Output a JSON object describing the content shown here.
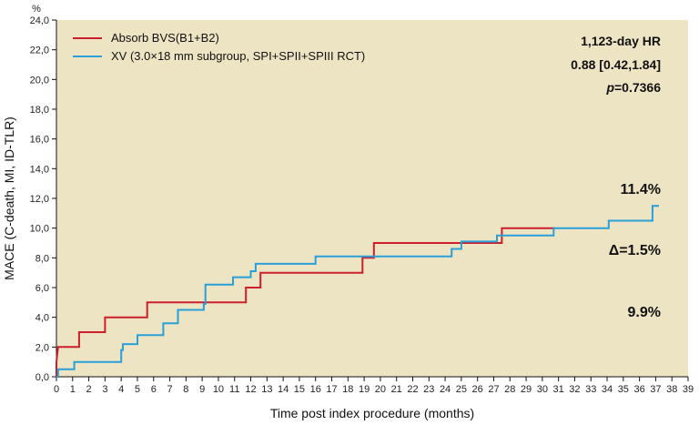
{
  "chart_data": {
    "type": "line",
    "step": true,
    "xlabel": "Time post index procedure (months)",
    "ylabel": "MACE (C-death, MI, ID-TLR)",
    "yunit": "%",
    "xlim": [
      0,
      39
    ],
    "ylim": [
      0,
      24
    ],
    "xticks": [
      0,
      1,
      2,
      3,
      4,
      5,
      6,
      7,
      8,
      9,
      10,
      11,
      12,
      13,
      14,
      15,
      16,
      17,
      18,
      19,
      20,
      21,
      22,
      23,
      24,
      25,
      26,
      27,
      28,
      29,
      30,
      31,
      32,
      33,
      34,
      35,
      36,
      37,
      38,
      39
    ],
    "yticks": [
      "0,0",
      "2,0",
      "4,0",
      "6,0",
      "8,0",
      "10,0",
      "12,0",
      "14,0",
      "16,0",
      "18,0",
      "20,0",
      "22,0",
      "24,0"
    ],
    "grid": false,
    "legend_position": "top-left",
    "series": [
      {
        "name": "Absorb BVS(B1+B2)",
        "color": "#cc1f2b",
        "points": [
          [
            0,
            0
          ],
          [
            0,
            1.0
          ],
          [
            0.1,
            2.0
          ],
          [
            1.4,
            2.0
          ],
          [
            1.4,
            3.0
          ],
          [
            3.0,
            3.0
          ],
          [
            3.0,
            4.0
          ],
          [
            5.6,
            4.0
          ],
          [
            5.6,
            5.0
          ],
          [
            11.7,
            5.0
          ],
          [
            11.7,
            6.0
          ],
          [
            12.6,
            6.0
          ],
          [
            12.6,
            7.0
          ],
          [
            18.9,
            7.0
          ],
          [
            18.9,
            8.0
          ],
          [
            19.6,
            8.0
          ],
          [
            19.6,
            9.0
          ],
          [
            27.5,
            9.0
          ],
          [
            27.5,
            10.0
          ],
          [
            30.8,
            10.0
          ]
        ]
      },
      {
        "name": "XV (3.0×18 mm subgroup, SPI+SPII+SPIII RCT)",
        "color": "#2a9fd8",
        "points": [
          [
            0,
            0
          ],
          [
            0.1,
            0
          ],
          [
            0.1,
            0.5
          ],
          [
            1.1,
            0.5
          ],
          [
            1.1,
            1.0
          ],
          [
            4.0,
            1.0
          ],
          [
            4.0,
            1.8
          ],
          [
            4.1,
            1.8
          ],
          [
            4.1,
            2.2
          ],
          [
            5.0,
            2.2
          ],
          [
            5.0,
            2.8
          ],
          [
            6.6,
            2.8
          ],
          [
            6.6,
            3.6
          ],
          [
            7.5,
            3.6
          ],
          [
            7.5,
            4.5
          ],
          [
            9.1,
            4.5
          ],
          [
            9.1,
            4.9
          ],
          [
            9.2,
            4.9
          ],
          [
            9.2,
            6.2
          ],
          [
            10.9,
            6.2
          ],
          [
            10.9,
            6.7
          ],
          [
            12.0,
            6.7
          ],
          [
            12.0,
            7.1
          ],
          [
            12.3,
            7.1
          ],
          [
            12.3,
            7.6
          ],
          [
            16.0,
            7.6
          ],
          [
            16.0,
            8.1
          ],
          [
            24.4,
            8.1
          ],
          [
            24.4,
            8.6
          ],
          [
            25.0,
            8.6
          ],
          [
            25.0,
            9.1
          ],
          [
            27.2,
            9.1
          ],
          [
            27.2,
            9.5
          ],
          [
            30.7,
            9.5
          ],
          [
            30.7,
            10.0
          ],
          [
            34.1,
            10.0
          ],
          [
            34.1,
            10.5
          ],
          [
            36.8,
            10.5
          ],
          [
            36.8,
            11.5
          ],
          [
            37.2,
            11.5
          ]
        ]
      }
    ],
    "annotations": {
      "hr_title": "1,123-day HR",
      "hr_value": "0.88 [0.42,1.84]",
      "p_label": "p",
      "p_value": "=0.7366",
      "xv_end": "11.4%",
      "delta": "Δ=1.5%",
      "bvs_end": "9.9%"
    },
    "colors": {
      "plot_background": "#ede4c4",
      "axis": "#111111"
    }
  }
}
